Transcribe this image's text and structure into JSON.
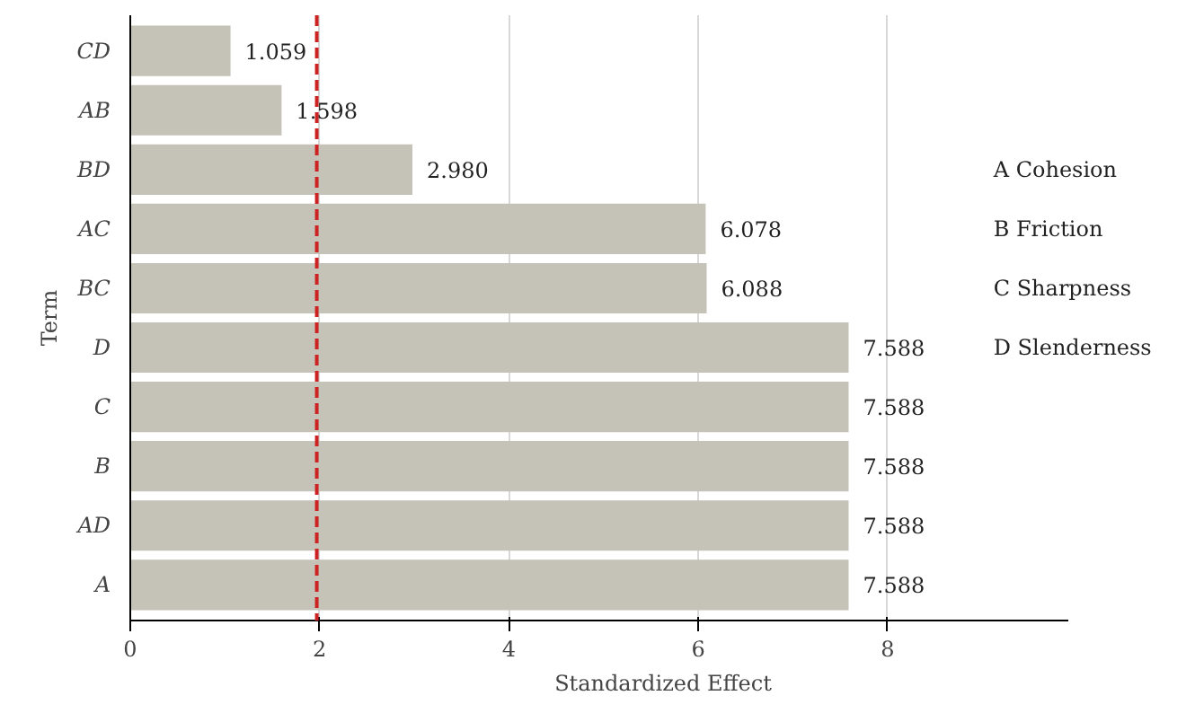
{
  "chart_data": {
    "type": "bar",
    "orientation": "horizontal",
    "xlabel": "Standardized Effect",
    "ylabel": "Term",
    "categories": [
      "CD",
      "AB",
      "BD",
      "AC",
      "BC",
      "D",
      "C",
      "B",
      "AD",
      "A"
    ],
    "values": [
      1.059,
      1.598,
      2.98,
      6.078,
      6.088,
      7.588,
      7.588,
      7.588,
      7.588,
      7.588
    ],
    "value_labels": [
      "1.059",
      "1.598",
      "2.980",
      "6.078",
      "6.088",
      "7.588",
      "7.588",
      "7.588",
      "7.588",
      "7.588"
    ],
    "color": "#c5c2b8",
    "xlim": [
      0,
      9.9
    ],
    "xticks": [
      0,
      2,
      4,
      6,
      8
    ],
    "grid": "x",
    "ref_lines": [
      {
        "axis": "x",
        "value": 1.97,
        "color": "#cc2222",
        "line_style": "dashed"
      }
    ],
    "annotations": [
      "A Cohesion",
      "B Friction",
      "C Sharpness",
      "D Slenderness"
    ]
  }
}
